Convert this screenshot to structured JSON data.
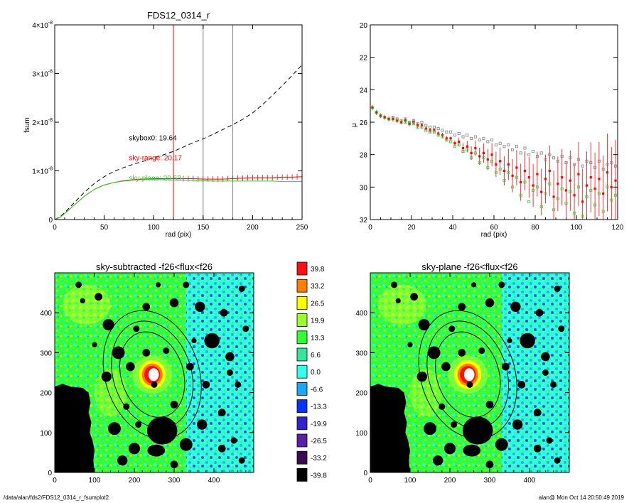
{
  "footer": {
    "left": "/data/alan/fds2/FDS12_0314_r_fsumplot2",
    "right": "alan@  Mon Oct 14 20:50:49 2019"
  },
  "colors": {
    "black": "#000000",
    "red": "#ff0000",
    "green": "#33cc33",
    "gray": "#808080",
    "map_red": "#ff1010",
    "map_orange": "#ff7f00",
    "map_yellow": "#ffff00",
    "map_yellowgreen": "#99ff33",
    "map_green": "#33ff33",
    "map_seagreen": "#33e699",
    "map_cyan": "#33ffee",
    "map_azure": "#19a8ff",
    "map_blue": "#0033ff",
    "map_darkblue": "#3322cc",
    "map_purple": "#5a1fa8",
    "map_darkpurple": "#3b0a54",
    "map_black": "#000000"
  },
  "chart_data": [
    {
      "id": "fsum",
      "type": "line",
      "title": "FDS12_0314_r",
      "xlabel": "rad (pix)",
      "ylabel": "fsum",
      "xlim": [
        0,
        250
      ],
      "ylim": [
        0,
        4e-08
      ],
      "xticks": [
        0,
        50,
        100,
        150,
        200,
        250
      ],
      "yticks": [
        0,
        1e-08,
        2e-08,
        3e-08,
        4e-08
      ],
      "ytick_labels": [
        {
          "mant": "0",
          "exp": ""
        },
        {
          "mant": "1×10",
          "exp": "-8"
        },
        {
          "mant": "2×10",
          "exp": "-8"
        },
        {
          "mant": "3×10",
          "exp": "-8"
        },
        {
          "mant": "4×10",
          "exp": "-8"
        }
      ],
      "vlines": [
        {
          "x": 120,
          "color": "red"
        },
        {
          "x": 150,
          "color": "gray"
        },
        {
          "x": 180,
          "color": "gray"
        }
      ],
      "series": [
        {
          "style": "dashed",
          "color": "black",
          "x": [
            0,
            5,
            10,
            20,
            30,
            40,
            50,
            60,
            70,
            80,
            90,
            100,
            110,
            120,
            130,
            140,
            150,
            160,
            170,
            180,
            190,
            200,
            210,
            220,
            230,
            240,
            250
          ],
          "y": [
            0,
            5e-10,
            1.4e-09,
            3.5e-09,
            5.6e-09,
            7.4e-09,
            8.8e-09,
            9.9e-09,
            1.07e-08,
            1.14e-08,
            1.2e-08,
            1.27e-08,
            1.33e-08,
            1.4e-08,
            1.49e-08,
            1.58e-08,
            1.66e-08,
            1.75e-08,
            1.85e-08,
            1.95e-08,
            2.06e-08,
            2.19e-08,
            2.36e-08,
            2.55e-08,
            2.75e-08,
            2.96e-08,
            3.18e-08
          ]
        },
        {
          "style": "solid",
          "color": "red",
          "errorbars": true,
          "x": [
            0,
            5,
            10,
            20,
            30,
            40,
            50,
            60,
            70,
            80,
            90,
            100,
            110,
            120,
            130,
            140,
            150,
            160,
            170,
            180,
            190,
            200,
            210,
            220,
            230,
            240,
            250
          ],
          "y": [
            0,
            4e-10,
            1.2e-09,
            3e-09,
            4.8e-09,
            6.2e-09,
            7.1e-09,
            7.6e-09,
            8e-09,
            8.2e-09,
            8.3e-09,
            8.4e-09,
            8.4e-09,
            8.4e-09,
            8.4e-09,
            8.4e-09,
            8.3e-09,
            8.3e-09,
            8.3e-09,
            8.4e-09,
            8.5e-09,
            8.6e-09,
            8.6e-09,
            8.6e-09,
            8.7e-09,
            8.7e-09,
            8.8e-09
          ]
        },
        {
          "style": "solid",
          "color": "green",
          "x": [
            0,
            5,
            10,
            20,
            30,
            40,
            50,
            60,
            70,
            80,
            90,
            100,
            110,
            120,
            130,
            140,
            150,
            160,
            170,
            180,
            190,
            200,
            210,
            220,
            230,
            240,
            250
          ],
          "y": [
            0,
            4e-10,
            1.2e-09,
            3e-09,
            4.8e-09,
            6.2e-09,
            7.1e-09,
            7.6e-09,
            7.9e-09,
            8.1e-09,
            8.2e-09,
            8.2e-09,
            8.2e-09,
            8.1e-09,
            8.1e-09,
            8e-09,
            8e-09,
            7.9e-09,
            7.9e-09,
            7.9e-09,
            7.9e-09,
            7.9e-09,
            7.9e-09,
            7.9e-09,
            7.8e-09,
            7.8e-09,
            7.8e-09
          ]
        }
      ],
      "annotations": [
        {
          "text": "skybox0: 19.64",
          "color": "black",
          "x": 75,
          "y": 1.63e-08
        },
        {
          "text": "sky-range: 20.17",
          "color": "red",
          "x": 75,
          "y": 1.22e-08
        },
        {
          "text": "sky-plane: 20.53",
          "color": "green",
          "x": 75,
          "y": 8e-09
        }
      ]
    },
    {
      "id": "mu",
      "type": "scatter",
      "xlabel": "rad (pix)",
      "ylabel": "μ",
      "xlim": [
        0,
        120
      ],
      "ylim": [
        32,
        20
      ],
      "xticks": [
        0,
        20,
        40,
        60,
        80,
        100,
        120
      ],
      "yticks": [
        20,
        22,
        24,
        26,
        28,
        30,
        32
      ],
      "series": [
        {
          "color": "gray",
          "marker": "square",
          "x": [
            1,
            3,
            5,
            7,
            9,
            11,
            13,
            15,
            17,
            19,
            21,
            23,
            25,
            27,
            29,
            31,
            33,
            35,
            37,
            39,
            41,
            43,
            45,
            47,
            49,
            51,
            53,
            55,
            57,
            59,
            61,
            63,
            65,
            67,
            69,
            71,
            73,
            75,
            77,
            79,
            81,
            83,
            85,
            87,
            89,
            91,
            93,
            95,
            97,
            99,
            101,
            103,
            105,
            107,
            109,
            111,
            113,
            115,
            117,
            119
          ],
          "y": [
            25.1,
            25.4,
            25.6,
            25.7,
            25.8,
            25.7,
            25.8,
            25.9,
            25.8,
            26.0,
            25.9,
            26.1,
            26.0,
            26.2,
            26.3,
            26.3,
            26.4,
            26.5,
            26.6,
            26.6,
            26.8,
            26.7,
            26.9,
            26.8,
            27.0,
            26.9,
            27.1,
            27.0,
            27.2,
            27.1,
            27.4,
            27.3,
            27.5,
            27.4,
            27.7,
            27.5,
            27.9,
            27.6,
            28.0,
            27.8,
            28.1,
            27.9,
            28.3,
            28.0,
            28.2,
            28.4,
            28.1,
            28.5,
            28.2,
            28.6,
            28.3,
            28.7,
            28.4,
            28.5,
            28.8,
            28.4,
            28.9,
            28.6,
            28.5,
            28.7
          ]
        },
        {
          "color": "red",
          "marker": "square",
          "errorbars": true,
          "x": [
            1,
            3,
            5,
            7,
            9,
            11,
            13,
            15,
            17,
            19,
            21,
            23,
            25,
            27,
            29,
            31,
            33,
            35,
            37,
            39,
            41,
            43,
            45,
            47,
            49,
            51,
            53,
            55,
            57,
            59,
            61,
            63,
            65,
            67,
            69,
            71,
            73,
            75,
            77,
            79,
            81,
            83,
            85,
            87,
            89,
            91,
            93,
            95,
            97,
            99,
            101,
            103,
            105,
            107,
            109,
            111,
            113,
            115,
            117,
            119
          ],
          "y": [
            25.1,
            25.4,
            25.6,
            25.7,
            25.8,
            25.8,
            25.9,
            26.0,
            25.9,
            26.1,
            26.0,
            26.2,
            26.2,
            26.4,
            26.5,
            26.5,
            26.7,
            26.8,
            27.0,
            27.0,
            27.3,
            27.2,
            27.6,
            27.5,
            27.9,
            27.6,
            28.1,
            27.9,
            28.3,
            28.0,
            28.6,
            28.4,
            29.0,
            28.6,
            29.3,
            28.8,
            29.7,
            29.0,
            29.4,
            29.9,
            29.2,
            30.3,
            29.5,
            29.0,
            30.6,
            29.8,
            29.4,
            30.2,
            29.6,
            30.5,
            29.2,
            30.9,
            29.9,
            29.4,
            30.1,
            29.5,
            30.4,
            29.1,
            30.0,
            29.6
          ]
        },
        {
          "color": "green",
          "marker": "square",
          "x": [
            1,
            3,
            5,
            7,
            9,
            11,
            13,
            15,
            17,
            19,
            21,
            23,
            25,
            27,
            29,
            31,
            33,
            35,
            37,
            39,
            41,
            43,
            45,
            47,
            49,
            51,
            53,
            55,
            57,
            59,
            61,
            63,
            65,
            67,
            69,
            71,
            73,
            75,
            77,
            79,
            81,
            83,
            85,
            87,
            89,
            91,
            93,
            95,
            97,
            99,
            101,
            103,
            105,
            107,
            109,
            111,
            113,
            115,
            117,
            119
          ],
          "y": [
            25.1,
            25.4,
            25.6,
            25.7,
            25.8,
            25.8,
            25.9,
            26.0,
            26.0,
            26.1,
            26.1,
            26.3,
            26.3,
            26.5,
            26.6,
            26.6,
            26.8,
            26.9,
            27.1,
            27.2,
            27.5,
            27.4,
            27.8,
            27.7,
            28.2,
            27.9,
            28.5,
            28.2,
            28.8,
            28.4,
            29.1,
            28.9,
            29.6,
            29.1,
            30.0,
            29.4,
            30.5,
            29.7,
            30.9,
            30.2,
            30.0,
            31.2,
            30.4,
            29.8,
            31.4,
            30.7,
            30.1,
            31.0,
            30.3,
            31.6,
            30.0,
            31.8,
            30.6,
            30.2,
            31.1,
            30.4,
            31.5,
            30.0,
            30.8,
            30.5
          ]
        }
      ]
    },
    {
      "id": "map1",
      "type": "heatmap",
      "title": "sky-subtracted -f26<flux<f26",
      "xlim": [
        0,
        500
      ],
      "ylim": [
        0,
        500
      ],
      "xticks": [
        0,
        100,
        200,
        300,
        400
      ],
      "yticks": [
        0,
        100,
        200,
        300,
        400
      ],
      "center": [
        245,
        245
      ],
      "ellipses": [
        {
          "a": 165,
          "b": 118,
          "angle": 18
        },
        {
          "a": 138,
          "b": 98,
          "angle": 18
        },
        {
          "a": 110,
          "b": 78,
          "angle": 18
        }
      ]
    },
    {
      "id": "colorbar",
      "type": "colorbar",
      "levels": [
        "39.8",
        "33.2",
        "26.5",
        "19.9",
        "13.3",
        "6.6",
        "0.0",
        "-6.6",
        "-13.3",
        "-19.9",
        "-26.5",
        "-33.2",
        "-39.8"
      ],
      "colors": [
        "#ff1010",
        "#ff7f00",
        "#ffff00",
        "#99ff33",
        "#33ff33",
        "#33e699",
        "#33ffee",
        "#19a8ff",
        "#0033ff",
        "#3322cc",
        "#5a1fa8",
        "#3b0a54",
        "#000000"
      ]
    },
    {
      "id": "map2",
      "type": "heatmap",
      "title": "sky-plane -f26<flux<f26",
      "xlim": [
        0,
        500
      ],
      "ylim": [
        0,
        500
      ],
      "xticks": [
        0,
        100,
        200,
        300,
        400
      ],
      "yticks": [
        0,
        100,
        200,
        300,
        400
      ],
      "center": [
        245,
        245
      ],
      "ellipses": [
        {
          "a": 165,
          "b": 118,
          "angle": 18
        },
        {
          "a": 138,
          "b": 98,
          "angle": 18
        },
        {
          "a": 110,
          "b": 78,
          "angle": 18
        }
      ]
    }
  ]
}
